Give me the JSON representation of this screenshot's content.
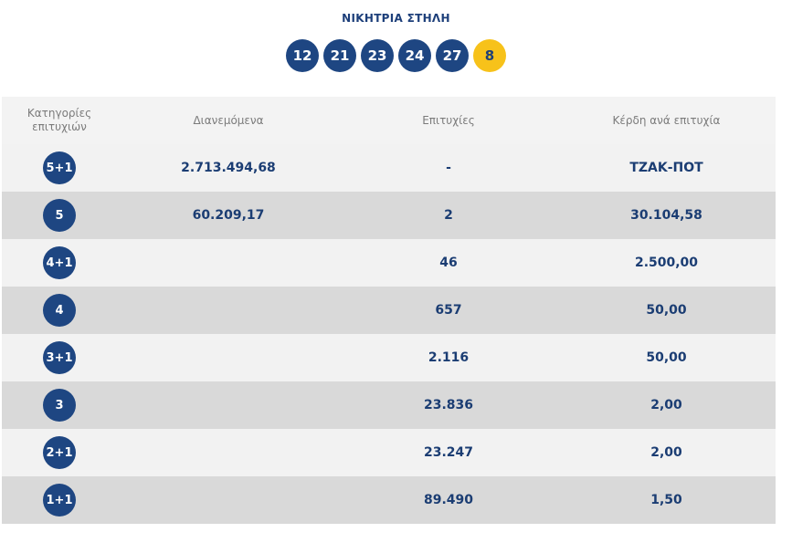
{
  "winning": {
    "title": "ΝΙΚΗΤΡΙΑ ΣΤΗΛΗ",
    "numbers": [
      "12",
      "21",
      "23",
      "24",
      "27"
    ],
    "bonus": "8"
  },
  "table": {
    "headers": {
      "category": "Κατηγορίες επιτυχιών",
      "distributed": "Διανεμόμενα",
      "winners": "Επιτυχίες",
      "prize": "Κέρδη ανά επιτυχία"
    },
    "rows": [
      {
        "category": "5+1",
        "distributed": "2.713.494,68",
        "winners": "-",
        "prize": "ΤΖΑΚ-ΠΟΤ"
      },
      {
        "category": "5",
        "distributed": "60.209,17",
        "winners": "2",
        "prize": "30.104,58"
      },
      {
        "category": "4+1",
        "distributed": "",
        "winners": "46",
        "prize": "2.500,00"
      },
      {
        "category": "4",
        "distributed": "",
        "winners": "657",
        "prize": "50,00"
      },
      {
        "category": "3+1",
        "distributed": "",
        "winners": "2.116",
        "prize": "50,00"
      },
      {
        "category": "3",
        "distributed": "",
        "winners": "23.836",
        "prize": "2,00"
      },
      {
        "category": "2+1",
        "distributed": "",
        "winners": "23.247",
        "prize": "2,00"
      },
      {
        "category": "1+1",
        "distributed": "",
        "winners": "89.490",
        "prize": "1,50"
      }
    ]
  },
  "colors": {
    "ball": "#1e4682",
    "bonus_ball": "#f7c21a",
    "row_light": "#f2f2f2",
    "row_dark": "#d9d9d9",
    "text": "#1b3d73"
  }
}
